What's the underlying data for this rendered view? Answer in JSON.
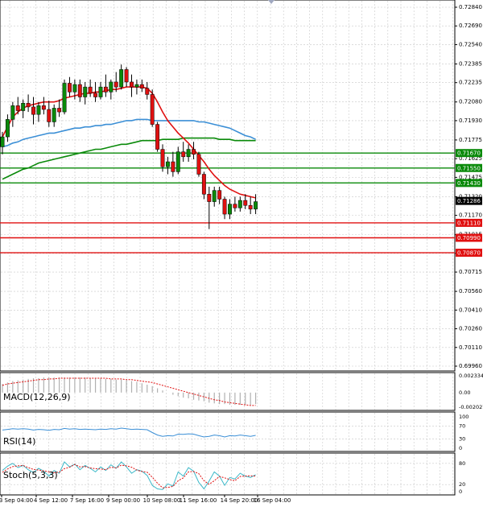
{
  "chart_data": {
    "type": "candlestick",
    "instrument": "",
    "main": {
      "ylim": [
        0.6996,
        0.7284
      ],
      "y_ticks": [
        "0.72840",
        "0.72690",
        "0.72540",
        "0.72385",
        "0.72235",
        "0.72080",
        "0.71930",
        "0.71775",
        "0.71625",
        "0.71475",
        "0.71320",
        "0.71170",
        "0.71015",
        "0.70865",
        "0.70715",
        "0.70560",
        "0.70410",
        "0.70260",
        "0.70110",
        "0.69960"
      ],
      "x_tick_labels": [
        "3 Sep 04:00",
        "4 Sep 12:00",
        "7 Sep 16:00",
        "9 Sep 00:00",
        "10 Sep 08:00",
        "11 Sep 16:00",
        "14 Sep 20:00",
        "16 Sep 04:00"
      ],
      "last_price": "0.71286",
      "levels": [
        {
          "label": "0.71670",
          "value": 0.7167,
          "color": "#0a8a0a"
        },
        {
          "label": "0.71550",
          "value": 0.7155,
          "color": "#0a8a0a"
        },
        {
          "label": "0.71430",
          "value": 0.7143,
          "color": "#0a8a0a"
        },
        {
          "label": "0.71110",
          "value": 0.7111,
          "color": "#e01010"
        },
        {
          "label": "0.70990",
          "value": 0.7099,
          "color": "#e01010"
        },
        {
          "label": "0.70870",
          "value": 0.7087,
          "color": "#e01010"
        }
      ],
      "candles": [
        [
          0.7172,
          0.7184,
          0.7166,
          0.718
        ],
        [
          0.718,
          0.7198,
          0.7176,
          0.7194
        ],
        [
          0.7194,
          0.7208,
          0.7188,
          0.7205
        ],
        [
          0.7205,
          0.7212,
          0.7198,
          0.7201
        ],
        [
          0.7201,
          0.721,
          0.7195,
          0.7207
        ],
        [
          0.7207,
          0.7214,
          0.72,
          0.7204
        ],
        [
          0.7204,
          0.7212,
          0.719,
          0.7198
        ],
        [
          0.7198,
          0.7208,
          0.7192,
          0.7205
        ],
        [
          0.7205,
          0.7212,
          0.7198,
          0.7202
        ],
        [
          0.7202,
          0.7209,
          0.7188,
          0.7192
        ],
        [
          0.7192,
          0.7206,
          0.7188,
          0.7203
        ],
        [
          0.7203,
          0.721,
          0.7196,
          0.72
        ],
        [
          0.72,
          0.7226,
          0.7198,
          0.7223
        ],
        [
          0.7223,
          0.7228,
          0.7212,
          0.7216
        ],
        [
          0.7216,
          0.7226,
          0.721,
          0.7222
        ],
        [
          0.7222,
          0.7226,
          0.7208,
          0.7212
        ],
        [
          0.7212,
          0.7224,
          0.7206,
          0.722
        ],
        [
          0.722,
          0.7226,
          0.7212,
          0.7215
        ],
        [
          0.7215,
          0.7224,
          0.7208,
          0.7212
        ],
        [
          0.7212,
          0.7224,
          0.721,
          0.722
        ],
        [
          0.722,
          0.723,
          0.7212,
          0.7216
        ],
        [
          0.7216,
          0.7226,
          0.721,
          0.7224
        ],
        [
          0.7224,
          0.7232,
          0.7216,
          0.722
        ],
        [
          0.722,
          0.7238,
          0.7218,
          0.7234
        ],
        [
          0.7234,
          0.7236,
          0.722,
          0.7224
        ],
        [
          0.7224,
          0.723,
          0.7212,
          0.722
        ],
        [
          0.722,
          0.7226,
          0.7214,
          0.7222
        ],
        [
          0.7222,
          0.7226,
          0.7216,
          0.7219
        ],
        [
          0.7219,
          0.7224,
          0.721,
          0.7214
        ],
        [
          0.7214,
          0.7218,
          0.7188,
          0.719
        ],
        [
          0.719,
          0.7192,
          0.7168,
          0.717
        ],
        [
          0.717,
          0.7174,
          0.7152,
          0.7156
        ],
        [
          0.7156,
          0.7164,
          0.715,
          0.716
        ],
        [
          0.716,
          0.7168,
          0.7148,
          0.7152
        ],
        [
          0.7152,
          0.7172,
          0.715,
          0.7168
        ],
        [
          0.7168,
          0.7176,
          0.716,
          0.7164
        ],
        [
          0.7164,
          0.7174,
          0.716,
          0.717
        ],
        [
          0.717,
          0.7176,
          0.7162,
          0.7166
        ],
        [
          0.7166,
          0.7168,
          0.7148,
          0.715
        ],
        [
          0.715,
          0.7152,
          0.713,
          0.7134
        ],
        [
          0.7134,
          0.714,
          0.7106,
          0.7128
        ],
        [
          0.7128,
          0.714,
          0.7124,
          0.7137
        ],
        [
          0.7137,
          0.714,
          0.7126,
          0.713
        ],
        [
          0.713,
          0.7132,
          0.7114,
          0.7118
        ],
        [
          0.7118,
          0.713,
          0.7114,
          0.7126
        ],
        [
          0.7126,
          0.7132,
          0.712,
          0.7123
        ],
        [
          0.7123,
          0.7132,
          0.712,
          0.7129
        ],
        [
          0.7129,
          0.7134,
          0.7122,
          0.7125
        ],
        [
          0.7125,
          0.7132,
          0.7118,
          0.7122
        ],
        [
          0.7122,
          0.7134,
          0.7118,
          0.7128
        ]
      ],
      "ma_fast": [
        0.718,
        0.7188,
        0.7196,
        0.72,
        0.7203,
        0.7205,
        0.7206,
        0.7207,
        0.7208,
        0.7208,
        0.7208,
        0.7209,
        0.7211,
        0.7212,
        0.7213,
        0.7214,
        0.7215,
        0.7215,
        0.7216,
        0.7216,
        0.7217,
        0.7218,
        0.7218,
        0.7219,
        0.722,
        0.722,
        0.722,
        0.722,
        0.7219,
        0.7215,
        0.7208,
        0.72,
        0.7193,
        0.7188,
        0.7183,
        0.7179,
        0.7175,
        0.717,
        0.7165,
        0.716,
        0.7154,
        0.7149,
        0.7145,
        0.7141,
        0.7138,
        0.7136,
        0.7134,
        0.7133,
        0.7132,
        0.7131
      ],
      "ma_mid": [
        0.7172,
        0.7173,
        0.7175,
        0.7176,
        0.7178,
        0.7179,
        0.718,
        0.7181,
        0.7182,
        0.7183,
        0.7183,
        0.7184,
        0.7185,
        0.7186,
        0.7187,
        0.7187,
        0.7188,
        0.7188,
        0.7189,
        0.7189,
        0.719,
        0.719,
        0.7191,
        0.7192,
        0.7193,
        0.7193,
        0.7194,
        0.7194,
        0.7194,
        0.7193,
        0.7193,
        0.7193,
        0.7193,
        0.7193,
        0.7193,
        0.7193,
        0.7193,
        0.7193,
        0.7192,
        0.7192,
        0.7191,
        0.719,
        0.7189,
        0.7188,
        0.7187,
        0.7185,
        0.7183,
        0.7181,
        0.718,
        0.7178
      ],
      "ma_slow": [
        0.7146,
        0.7148,
        0.715,
        0.7152,
        0.7154,
        0.7155,
        0.7157,
        0.7159,
        0.716,
        0.7161,
        0.7162,
        0.7163,
        0.7164,
        0.7165,
        0.7166,
        0.7167,
        0.7168,
        0.7169,
        0.717,
        0.717,
        0.7171,
        0.7172,
        0.7173,
        0.7174,
        0.7174,
        0.7175,
        0.7176,
        0.7177,
        0.7177,
        0.7177,
        0.7177,
        0.7178,
        0.7178,
        0.7178,
        0.7178,
        0.7179,
        0.7179,
        0.7179,
        0.7179,
        0.7179,
        0.7179,
        0.7179,
        0.7178,
        0.7178,
        0.7178,
        0.7177,
        0.7177,
        0.7177,
        0.7177,
        0.7177
      ]
    },
    "macd": {
      "label": "MACD(12,26,9)",
      "ylim": [
        -0.00203,
        0.002334
      ],
      "y_ticks": [
        "0.002334",
        "0.00",
        "-0.002027"
      ],
      "hist": [
        0.0012,
        0.0014,
        0.0016,
        0.0017,
        0.0018,
        0.0019,
        0.002,
        0.002,
        0.0021,
        0.0021,
        0.0021,
        0.0021,
        0.0021,
        0.0021,
        0.0021,
        0.0021,
        0.0021,
        0.002,
        0.002,
        0.002,
        0.0019,
        0.0019,
        0.0018,
        0.0018,
        0.0017,
        0.0016,
        0.0015,
        0.0013,
        0.0011,
        0.0009,
        0.0006,
        0.0003,
        0.0,
        -0.0003,
        -0.0005,
        -0.0007,
        -0.0008,
        -0.001,
        -0.0011,
        -0.0012,
        -0.0014,
        -0.0015,
        -0.0016,
        -0.0016,
        -0.0017,
        -0.0017,
        -0.0017,
        -0.0017,
        -0.0017,
        -0.0016
      ],
      "signal": [
        0.001,
        0.0012,
        0.0013,
        0.0014,
        0.0015,
        0.0016,
        0.0017,
        0.0018,
        0.0018,
        0.0019,
        0.0019,
        0.002,
        0.002,
        0.002,
        0.002,
        0.002,
        0.002,
        0.002,
        0.002,
        0.002,
        0.002,
        0.0019,
        0.0019,
        0.0019,
        0.0018,
        0.0018,
        0.0017,
        0.0016,
        0.0015,
        0.0014,
        0.0012,
        0.001,
        0.0008,
        0.0006,
        0.0004,
        0.0002,
        0.0,
        -0.0002,
        -0.0004,
        -0.0006,
        -0.0008,
        -0.001,
        -0.0011,
        -0.0013,
        -0.0014,
        -0.0015,
        -0.0016,
        -0.0017,
        -0.0018,
        -0.0018
      ]
    },
    "rsi": {
      "label": "RSI(14)",
      "ylim": [
        0,
        100
      ],
      "y_ticks": [
        "100",
        "70",
        "30",
        "0"
      ],
      "values": [
        58,
        60,
        62,
        61,
        62,
        61,
        58,
        60,
        59,
        57,
        60,
        59,
        63,
        61,
        62,
        60,
        61,
        60,
        59,
        61,
        60,
        62,
        61,
        64,
        62,
        60,
        61,
        60,
        59,
        50,
        42,
        38,
        40,
        39,
        45,
        44,
        46,
        45,
        40,
        36,
        38,
        42,
        40,
        36,
        40,
        39,
        42,
        40,
        38,
        41
      ]
    },
    "stoch": {
      "label": "Stoch(5,3,3)",
      "ylim": [
        0,
        100
      ],
      "y_ticks": [
        "80",
        "20",
        "0"
      ],
      "k": [
        60,
        72,
        80,
        68,
        74,
        62,
        54,
        66,
        58,
        44,
        60,
        52,
        84,
        70,
        78,
        62,
        74,
        66,
        56,
        70,
        60,
        76,
        66,
        84,
        70,
        52,
        62,
        58,
        46,
        18,
        8,
        6,
        22,
        16,
        56,
        44,
        68,
        58,
        26,
        8,
        30,
        56,
        44,
        18,
        40,
        36,
        52,
        44,
        40,
        48
      ],
      "d": [
        55,
        64,
        71,
        73,
        74,
        68,
        63,
        61,
        59,
        56,
        54,
        55,
        65,
        69,
        77,
        70,
        71,
        67,
        65,
        64,
        62,
        69,
        67,
        75,
        73,
        69,
        61,
        57,
        55,
        41,
        24,
        11,
        12,
        15,
        31,
        39,
        56,
        57,
        51,
        31,
        21,
        31,
        43,
        39,
        34,
        31,
        43,
        44,
        45,
        44
      ]
    }
  }
}
